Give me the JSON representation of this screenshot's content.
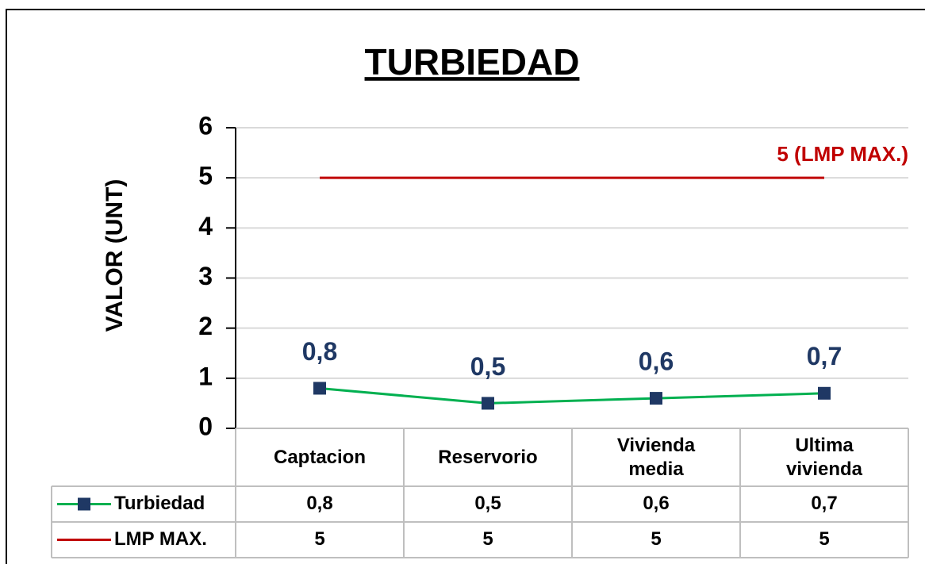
{
  "chart_data": {
    "type": "line",
    "title": "TURBIEDAD",
    "ylabel": "VALOR (UNT)",
    "categories": [
      "Captacion",
      "Reservorio",
      "Vivienda media",
      "Ultima vivienda"
    ],
    "series": [
      {
        "name": "Turbiedad",
        "color": "#00b050",
        "marker_color": "#1f3864",
        "values": [
          0.8,
          0.5,
          0.6,
          0.7
        ],
        "value_labels": [
          "0,8",
          "0,5",
          "0,6",
          "0,7"
        ]
      },
      {
        "name": "LMP MAX.",
        "color": "#c00000",
        "values": [
          5,
          5,
          5,
          5
        ]
      }
    ],
    "annotation": "5 (LMP MAX.)",
    "ylim": [
      0,
      6
    ],
    "yticks": [
      0,
      1,
      2,
      3,
      4,
      5,
      6
    ],
    "grid": true,
    "data_table": true
  }
}
